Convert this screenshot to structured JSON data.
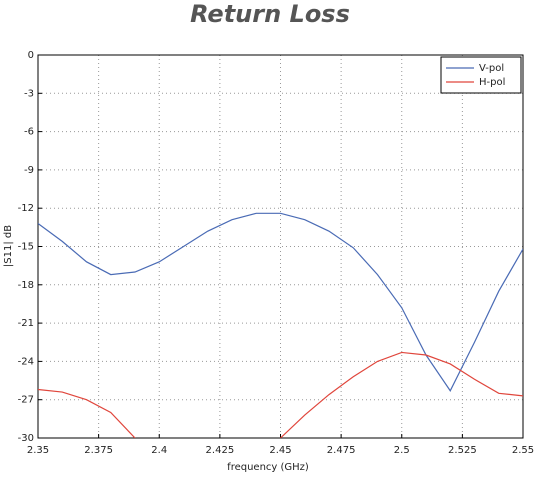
{
  "chart_data": {
    "type": "line",
    "title": "Return Loss",
    "x_label": "frequency (GHz)",
    "y_label": "|S11| dB",
    "x": [
      2.35,
      2.36,
      2.37,
      2.38,
      2.39,
      2.4,
      2.41,
      2.42,
      2.43,
      2.44,
      2.45,
      2.46,
      2.47,
      2.48,
      2.49,
      2.5,
      2.51,
      2.52,
      2.53,
      2.54,
      2.55
    ],
    "series": [
      {
        "name": "V-pol",
        "color": "#4a6bb5",
        "values": [
          -13.2,
          -14.6,
          -16.2,
          -17.2,
          -17.0,
          -16.2,
          -15.0,
          -13.8,
          -12.9,
          -12.4,
          -12.4,
          -12.9,
          -13.8,
          -15.1,
          -17.2,
          -19.8,
          -23.5,
          -26.3,
          -22.5,
          -18.5,
          -15.2
        ]
      },
      {
        "name": "H-pol",
        "color": "#e0463c",
        "values": [
          -26.2,
          -26.4,
          -27.0,
          -28.0,
          -30,
          null,
          null,
          null,
          null,
          null,
          -30,
          -28.2,
          -26.6,
          -25.2,
          -24.0,
          -23.3,
          -23.5,
          -24.2,
          -25.4,
          -26.5,
          -26.7
        ]
      }
    ],
    "xlim": [
      2.35,
      2.55
    ],
    "xticks": [
      2.35,
      2.375,
      2.4,
      2.425,
      2.45,
      2.475,
      2.5,
      2.525,
      2.55
    ],
    "ylim": [
      -30,
      0
    ],
    "yticks": [
      0,
      -3,
      -6,
      -9,
      -12,
      -15,
      -18,
      -21,
      -24,
      -27,
      -30
    ],
    "grid": true,
    "legend": "upper right"
  }
}
